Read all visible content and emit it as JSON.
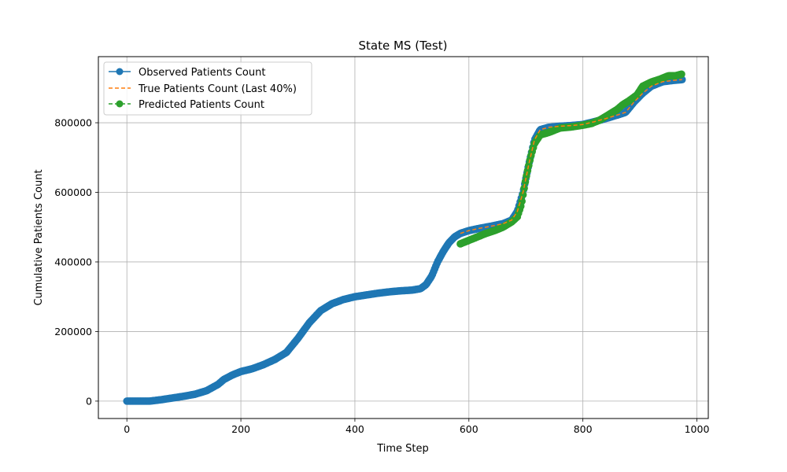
{
  "chart_data": {
    "type": "line",
    "title": "State MS (Test)",
    "xlabel": "Time Step",
    "ylabel": "Cumulative Patients Count",
    "xlim": [
      -50,
      1020
    ],
    "ylim": [
      -50000,
      990000
    ],
    "xticks": [
      0,
      200,
      400,
      600,
      800,
      1000
    ],
    "xtick_labels": [
      "0",
      "200",
      "400",
      "600",
      "800",
      "1000"
    ],
    "yticks": [
      0,
      200000,
      400000,
      600000,
      800000
    ],
    "ytick_labels": [
      "0",
      "200000",
      "400000",
      "600000",
      "800000"
    ],
    "grid": true,
    "legend_position": "top-left",
    "colors": {
      "observed": "#1f77b4",
      "true": "#ff7f0e",
      "predicted": "#2ca02c",
      "grid": "#b0b0b0"
    },
    "series": [
      {
        "name": "Observed Patients Count",
        "style": "solid-line-with-circle-markers",
        "range": [
          0,
          974
        ],
        "points": [
          [
            0,
            0
          ],
          [
            40,
            0
          ],
          [
            60,
            4000
          ],
          [
            80,
            9000
          ],
          [
            100,
            14000
          ],
          [
            120,
            20000
          ],
          [
            140,
            30000
          ],
          [
            160,
            48000
          ],
          [
            170,
            62000
          ],
          [
            185,
            75000
          ],
          [
            200,
            85000
          ],
          [
            220,
            93000
          ],
          [
            240,
            105000
          ],
          [
            260,
            120000
          ],
          [
            280,
            140000
          ],
          [
            300,
            180000
          ],
          [
            320,
            225000
          ],
          [
            340,
            260000
          ],
          [
            360,
            280000
          ],
          [
            380,
            292000
          ],
          [
            400,
            300000
          ],
          [
            420,
            305000
          ],
          [
            440,
            310000
          ],
          [
            460,
            314000
          ],
          [
            480,
            317000
          ],
          [
            500,
            319000
          ],
          [
            515,
            323000
          ],
          [
            525,
            335000
          ],
          [
            535,
            360000
          ],
          [
            545,
            400000
          ],
          [
            555,
            430000
          ],
          [
            565,
            455000
          ],
          [
            575,
            472000
          ],
          [
            585,
            482000
          ],
          [
            600,
            490000
          ],
          [
            620,
            497000
          ],
          [
            640,
            503000
          ],
          [
            660,
            510000
          ],
          [
            675,
            520000
          ],
          [
            685,
            545000
          ],
          [
            695,
            600000
          ],
          [
            705,
            680000
          ],
          [
            715,
            750000
          ],
          [
            725,
            780000
          ],
          [
            740,
            787000
          ],
          [
            760,
            790000
          ],
          [
            780,
            792000
          ],
          [
            800,
            795000
          ],
          [
            820,
            803000
          ],
          [
            840,
            812000
          ],
          [
            860,
            822000
          ],
          [
            875,
            830000
          ],
          [
            890,
            860000
          ],
          [
            905,
            885000
          ],
          [
            920,
            905000
          ],
          [
            940,
            918000
          ],
          [
            960,
            922000
          ],
          [
            974,
            924000
          ]
        ]
      },
      {
        "name": "True Patients Count (Last 40%)",
        "style": "dashed-line",
        "range": [
          585,
          974
        ],
        "points": [
          [
            585,
            482000
          ],
          [
            600,
            490000
          ],
          [
            620,
            497000
          ],
          [
            640,
            503000
          ],
          [
            660,
            510000
          ],
          [
            675,
            520000
          ],
          [
            685,
            545000
          ],
          [
            695,
            600000
          ],
          [
            705,
            680000
          ],
          [
            715,
            750000
          ],
          [
            725,
            780000
          ],
          [
            740,
            787000
          ],
          [
            760,
            790000
          ],
          [
            780,
            792000
          ],
          [
            800,
            795000
          ],
          [
            820,
            803000
          ],
          [
            840,
            812000
          ],
          [
            860,
            822000
          ],
          [
            875,
            830000
          ],
          [
            890,
            860000
          ],
          [
            905,
            885000
          ],
          [
            920,
            905000
          ],
          [
            940,
            918000
          ],
          [
            960,
            922000
          ],
          [
            974,
            924000
          ]
        ]
      },
      {
        "name": "Predicted Patients Count",
        "style": "dashed-line-with-circle-markers",
        "range": [
          585,
          974
        ],
        "points": [
          [
            585,
            452000
          ],
          [
            600,
            462000
          ],
          [
            615,
            472000
          ],
          [
            630,
            482000
          ],
          [
            645,
            490000
          ],
          [
            660,
            500000
          ],
          [
            675,
            515000
          ],
          [
            685,
            530000
          ],
          [
            692,
            565000
          ],
          [
            700,
            640000
          ],
          [
            708,
            700000
          ],
          [
            715,
            740000
          ],
          [
            725,
            765000
          ],
          [
            740,
            772000
          ],
          [
            760,
            785000
          ],
          [
            780,
            788000
          ],
          [
            800,
            793000
          ],
          [
            815,
            798000
          ],
          [
            830,
            808000
          ],
          [
            845,
            823000
          ],
          [
            860,
            838000
          ],
          [
            870,
            852000
          ],
          [
            880,
            862000
          ],
          [
            895,
            880000
          ],
          [
            905,
            905000
          ],
          [
            920,
            917000
          ],
          [
            935,
            925000
          ],
          [
            950,
            935000
          ],
          [
            962,
            935000
          ],
          [
            974,
            940000
          ]
        ]
      }
    ]
  }
}
